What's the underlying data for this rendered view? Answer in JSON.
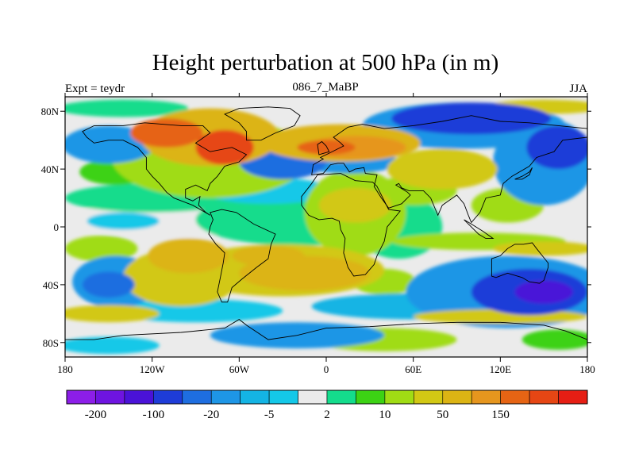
{
  "chart_data": {
    "type": "heatmap",
    "title": "Height perturbation at 500 hPa (in m)",
    "left_string": "Expt = teydr",
    "center_string": "086_7_MaBP",
    "right_string": "JJA",
    "x_ticks": [
      "180",
      "120W",
      "60W",
      "0",
      "60E",
      "120E",
      "180"
    ],
    "y_ticks": [
      "80N",
      "40N",
      "0",
      "40S",
      "80S"
    ],
    "xlim": [
      -180,
      180
    ],
    "ylim": [
      -90,
      90
    ],
    "legend_position": "bottom",
    "colorbar": {
      "colors": [
        "#8c1ee8",
        "#6e14e0",
        "#4a12d8",
        "#1e3cd8",
        "#1e6ee0",
        "#1e96e6",
        "#14b4e4",
        "#14c8e8",
        "#ebebeb",
        "#14dc8c",
        "#3cd214",
        "#a0dc14",
        "#d2c814",
        "#dcb414",
        "#e6961e",
        "#e66414",
        "#e64614",
        "#e61e14"
      ],
      "labels": [
        "-200",
        "-100",
        "-20",
        "-5",
        "2",
        "10",
        "50",
        "150"
      ]
    },
    "blobs": [
      {
        "lon": -150,
        "lat": 57,
        "rx": 32,
        "ry": 13,
        "level": -20
      },
      {
        "lon": -80,
        "lat": 48,
        "rx": 68,
        "ry": 28,
        "level": 10
      },
      {
        "lon": -80,
        "lat": 62,
        "rx": 48,
        "ry": 20,
        "level": 50
      },
      {
        "lon": -70,
        "lat": 55,
        "rx": 20,
        "ry": 12,
        "level": 150
      },
      {
        "lon": -110,
        "lat": 65,
        "rx": 25,
        "ry": 10,
        "level": 100
      },
      {
        "lon": -145,
        "lat": 38,
        "rx": 25,
        "ry": 9,
        "level": 5
      },
      {
        "lon": -120,
        "lat": 20,
        "rx": 60,
        "ry": 10,
        "level": 2
      },
      {
        "lon": -100,
        "lat": 5,
        "rx": 80,
        "ry": 12,
        "level": 1
      },
      {
        "lon": -140,
        "lat": 4,
        "rx": 25,
        "ry": 6,
        "level": -5
      },
      {
        "lon": -155,
        "lat": -15,
        "rx": 25,
        "ry": 9,
        "level": 10
      },
      {
        "lon": -145,
        "lat": -38,
        "rx": 30,
        "ry": 18,
        "level": -20
      },
      {
        "lon": -150,
        "lat": -40,
        "rx": 18,
        "ry": 9,
        "level": -40
      },
      {
        "lon": -100,
        "lat": -35,
        "rx": 40,
        "ry": 20,
        "level": 20
      },
      {
        "lon": -95,
        "lat": -20,
        "rx": 28,
        "ry": 12,
        "level": 50
      },
      {
        "lon": -30,
        "lat": -30,
        "rx": 70,
        "ry": 18,
        "level": 20
      },
      {
        "lon": -15,
        "lat": -32,
        "rx": 45,
        "ry": 12,
        "level": 50
      },
      {
        "lon": -40,
        "lat": -20,
        "rx": 25,
        "ry": 7,
        "level": 60
      },
      {
        "lon": 40,
        "lat": -38,
        "rx": 22,
        "ry": 9,
        "level": 10
      },
      {
        "lon": -20,
        "lat": 5,
        "rx": 70,
        "ry": 18,
        "level": 3
      },
      {
        "lon": 20,
        "lat": 10,
        "rx": 35,
        "ry": 30,
        "level": 10
      },
      {
        "lon": 20,
        "lat": 15,
        "rx": 25,
        "ry": 12,
        "level": 25
      },
      {
        "lon": 50,
        "lat": 0,
        "rx": 30,
        "ry": 22,
        "level": 3
      },
      {
        "lon": -40,
        "lat": 25,
        "rx": 45,
        "ry": 9,
        "level": -5
      },
      {
        "lon": -30,
        "lat": 45,
        "rx": 30,
        "ry": 12,
        "level": -40
      },
      {
        "lon": 15,
        "lat": 45,
        "rx": 35,
        "ry": 8,
        "level": -20
      },
      {
        "lon": 10,
        "lat": 58,
        "rx": 55,
        "ry": 13,
        "level": 50
      },
      {
        "lon": 20,
        "lat": 55,
        "rx": 35,
        "ry": 8,
        "level": 70
      },
      {
        "lon": 0,
        "lat": 55,
        "rx": 20,
        "ry": 5,
        "level": 100
      },
      {
        "lon": 80,
        "lat": 40,
        "rx": 38,
        "ry": 14,
        "level": 30
      },
      {
        "lon": 60,
        "lat": 25,
        "rx": 30,
        "ry": 10,
        "level": 10
      },
      {
        "lon": 95,
        "lat": 70,
        "rx": 70,
        "ry": 16,
        "level": -20
      },
      {
        "lon": 100,
        "lat": 75,
        "rx": 55,
        "ry": 11,
        "level": -100
      },
      {
        "lon": 150,
        "lat": 45,
        "rx": 35,
        "ry": 30,
        "level": -20
      },
      {
        "lon": 160,
        "lat": 55,
        "rx": 22,
        "ry": 15,
        "level": -100
      },
      {
        "lon": 125,
        "lat": 15,
        "rx": 25,
        "ry": 12,
        "level": 10
      },
      {
        "lon": 125,
        "lat": -45,
        "rx": 70,
        "ry": 25,
        "level": -20
      },
      {
        "lon": 140,
        "lat": -45,
        "rx": 40,
        "ry": 16,
        "level": -100
      },
      {
        "lon": 150,
        "lat": -45,
        "rx": 20,
        "ry": 8,
        "level": -150
      },
      {
        "lon": 105,
        "lat": -10,
        "rx": 60,
        "ry": 6,
        "level": 10
      },
      {
        "lon": 150,
        "lat": -15,
        "rx": 35,
        "ry": 5,
        "level": 30
      },
      {
        "lon": 60,
        "lat": -55,
        "rx": 70,
        "ry": 9,
        "level": -10
      },
      {
        "lon": 120,
        "lat": -62,
        "rx": 60,
        "ry": 5,
        "level": 40
      },
      {
        "lon": -90,
        "lat": -58,
        "rx": 60,
        "ry": 8,
        "level": -5
      },
      {
        "lon": -150,
        "lat": -60,
        "rx": 35,
        "ry": 6,
        "level": 20
      },
      {
        "lon": 40,
        "lat": -78,
        "rx": 50,
        "ry": 8,
        "level": 10
      },
      {
        "lon": -20,
        "lat": -75,
        "rx": 60,
        "ry": 9,
        "level": -20
      },
      {
        "lon": -150,
        "lat": -82,
        "rx": 35,
        "ry": 6,
        "level": -5
      },
      {
        "lon": 160,
        "lat": -78,
        "rx": 25,
        "ry": 7,
        "level": 5
      },
      {
        "lon": -140,
        "lat": 82,
        "rx": 45,
        "ry": 6,
        "level": 3
      },
      {
        "lon": 150,
        "lat": 83,
        "rx": 40,
        "ry": 5,
        "level": 40
      }
    ],
    "coastlines": [
      [
        [
          -168,
          66
        ],
        [
          -160,
          70
        ],
        [
          -140,
          70
        ],
        [
          -125,
          72
        ],
        [
          -100,
          70
        ],
        [
          -85,
          70
        ],
        [
          -80,
          65
        ],
        [
          -90,
          58
        ],
        [
          -80,
          52
        ],
        [
          -65,
          55
        ],
        [
          -55,
          50
        ],
        [
          -60,
          45
        ],
        [
          -70,
          42
        ],
        [
          -75,
          35
        ],
        [
          -80,
          30
        ],
        [
          -82,
          25
        ],
        [
          -90,
          29
        ],
        [
          -97,
          26
        ],
        [
          -97,
          20
        ],
        [
          -92,
          18
        ],
        [
          -87,
          21
        ],
        [
          -88,
          15
        ],
        [
          -83,
          10
        ],
        [
          -80,
          8
        ],
        [
          -85,
          11
        ],
        [
          -92,
          15
        ],
        [
          -105,
          20
        ],
        [
          -110,
          24
        ],
        [
          -115,
          30
        ],
        [
          -120,
          35
        ],
        [
          -124,
          40
        ],
        [
          -124,
          48
        ],
        [
          -130,
          55
        ],
        [
          -140,
          60
        ],
        [
          -150,
          60
        ],
        [
          -160,
          58
        ],
        [
          -165,
          62
        ],
        [
          -168,
          66
        ]
      ],
      [
        [
          -80,
          10
        ],
        [
          -72,
          12
        ],
        [
          -62,
          10
        ],
        [
          -50,
          2
        ],
        [
          -35,
          -5
        ],
        [
          -38,
          -12
        ],
        [
          -40,
          -22
        ],
        [
          -48,
          -28
        ],
        [
          -58,
          -36
        ],
        [
          -65,
          -42
        ],
        [
          -68,
          -52
        ],
        [
          -72,
          -52
        ],
        [
          -75,
          -45
        ],
        [
          -73,
          -35
        ],
        [
          -71,
          -25
        ],
        [
          -70,
          -18
        ],
        [
          -76,
          -12
        ],
        [
          -81,
          -5
        ],
        [
          -80,
          0
        ],
        [
          -78,
          5
        ],
        [
          -80,
          10
        ]
      ],
      [
        [
          -17,
          15
        ],
        [
          -17,
          21
        ],
        [
          -10,
          30
        ],
        [
          -6,
          36
        ],
        [
          10,
          37
        ],
        [
          20,
          32
        ],
        [
          32,
          31
        ],
        [
          35,
          28
        ],
        [
          43,
          12
        ],
        [
          51,
          11
        ],
        [
          42,
          0
        ],
        [
          40,
          -10
        ],
        [
          35,
          -20
        ],
        [
          33,
          -26
        ],
        [
          27,
          -33
        ],
        [
          19,
          -34
        ],
        [
          15,
          -28
        ],
        [
          12,
          -18
        ],
        [
          13,
          -8
        ],
        [
          10,
          -2
        ],
        [
          9,
          4
        ],
        [
          4,
          6
        ],
        [
          -5,
          5
        ],
        [
          -12,
          8
        ],
        [
          -17,
          15
        ]
      ],
      [
        [
          -10,
          36
        ],
        [
          -9,
          43
        ],
        [
          -2,
          47
        ],
        [
          -4,
          48
        ],
        [
          2,
          51
        ],
        [
          8,
          54
        ],
        [
          12,
          56
        ],
        [
          10,
          58
        ],
        [
          5,
          62
        ],
        [
          15,
          69
        ],
        [
          25,
          71
        ],
        [
          40,
          68
        ],
        [
          60,
          70
        ],
        [
          80,
          73
        ],
        [
          100,
          77
        ],
        [
          120,
          73
        ],
        [
          140,
          72
        ],
        [
          160,
          70
        ],
        [
          180,
          68
        ],
        [
          180,
          62
        ],
        [
          163,
          60
        ],
        [
          157,
          52
        ],
        [
          145,
          48
        ],
        [
          140,
          42
        ],
        [
          128,
          35
        ],
        [
          122,
          30
        ],
        [
          120,
          22
        ],
        [
          110,
          20
        ],
        [
          106,
          10
        ],
        [
          100,
          3
        ],
        [
          98,
          8
        ],
        [
          95,
          16
        ],
        [
          90,
          22
        ],
        [
          80,
          15
        ],
        [
          77,
          8
        ],
        [
          72,
          20
        ],
        [
          67,
          25
        ],
        [
          57,
          25
        ],
        [
          52,
          27
        ],
        [
          50,
          30
        ],
        [
          48,
          29
        ],
        [
          56,
          24
        ],
        [
          58,
          22
        ],
        [
          52,
          16
        ],
        [
          43,
          13
        ],
        [
          38,
          20
        ],
        [
          33,
          28
        ],
        [
          35,
          36
        ],
        [
          27,
          37
        ],
        [
          26,
          41
        ],
        [
          20,
          40
        ],
        [
          16,
          38
        ],
        [
          12,
          44
        ],
        [
          8,
          44
        ],
        [
          3,
          43
        ],
        [
          -2,
          37
        ],
        [
          -10,
          36
        ]
      ],
      [
        [
          114,
          -22
        ],
        [
          114,
          -34
        ],
        [
          117,
          -35
        ],
        [
          125,
          -32
        ],
        [
          135,
          -35
        ],
        [
          140,
          -38
        ],
        [
          147,
          -39
        ],
        [
          150,
          -37
        ],
        [
          153,
          -28
        ],
        [
          153,
          -25
        ],
        [
          145,
          -15
        ],
        [
          142,
          -11
        ],
        [
          136,
          -12
        ],
        [
          130,
          -12
        ],
        [
          125,
          -15
        ],
        [
          120,
          -20
        ],
        [
          114,
          -22
        ]
      ],
      [
        [
          -55,
          60
        ],
        [
          -45,
          60
        ],
        [
          -35,
          65
        ],
        [
          -22,
          70
        ],
        [
          -18,
          77
        ],
        [
          -25,
          82
        ],
        [
          -40,
          83
        ],
        [
          -60,
          82
        ],
        [
          -70,
          78
        ],
        [
          -60,
          72
        ],
        [
          -55,
          66
        ],
        [
          -55,
          60
        ]
      ],
      [
        [
          -180,
          -78
        ],
        [
          -160,
          -78
        ],
        [
          -140,
          -75
        ],
        [
          -100,
          -73
        ],
        [
          -70,
          -70
        ],
        [
          -60,
          -64
        ],
        [
          -55,
          -68
        ],
        [
          -40,
          -78
        ],
        [
          -20,
          -75
        ],
        [
          0,
          -70
        ],
        [
          30,
          -69
        ],
        [
          60,
          -67
        ],
        [
          90,
          -66
        ],
        [
          120,
          -66
        ],
        [
          150,
          -68
        ],
        [
          165,
          -72
        ],
        [
          180,
          -78
        ],
        [
          180,
          -90
        ],
        [
          -180,
          -90
        ],
        [
          -180,
          -78
        ]
      ],
      [
        [
          130,
          33
        ],
        [
          135,
          35
        ],
        [
          140,
          38
        ],
        [
          142,
          41
        ],
        [
          140,
          36
        ],
        [
          135,
          33
        ],
        [
          130,
          33
        ]
      ],
      [
        [
          95,
          5
        ],
        [
          105,
          -5
        ],
        [
          110,
          -8
        ],
        [
          115,
          -8
        ],
        [
          108,
          -3
        ],
        [
          100,
          2
        ],
        [
          95,
          5
        ]
      ],
      [
        [
          -5,
          50
        ],
        [
          2,
          52
        ],
        [
          0,
          56
        ],
        [
          -3,
          59
        ],
        [
          -6,
          57
        ],
        [
          -5,
          50
        ]
      ]
    ]
  }
}
